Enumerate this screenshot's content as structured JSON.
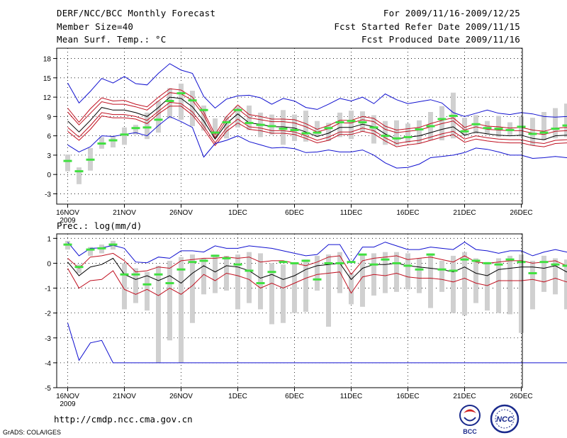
{
  "header": {
    "title": "DERF/NCC/BCC Monthly Forecast",
    "member_size": "Member Size=40",
    "variable": "Mean Surf. Temp.: °C",
    "period": "For 2009/11/16-2009/12/25",
    "started": "Fcst Started Refer Date 2009/11/15",
    "produced": "Fcst Produced Date 2009/11/16"
  },
  "prec_label": "Prec.: log(mm/d)",
  "footer": {
    "url": "http://cmdp.ncc.cma.gov.cn",
    "credit": "GrADS: COLA/IGES",
    "logo_bcc": "BCC",
    "logo_ncc": "NCC"
  },
  "colors": {
    "envelope": "#1010d0",
    "spread": "#c01020",
    "mean": "#000000",
    "observed": "#40e040",
    "box": "#d0d0d0"
  },
  "chart_data": [
    {
      "type": "line",
      "title": "Mean Surf. Temp.: °C",
      "ylim": [
        -4.6,
        19.6
      ],
      "yticks": [
        "18",
        "15",
        "12",
        "9",
        "6",
        "3",
        "0",
        "-3"
      ],
      "ytick_values": [
        18,
        15,
        12,
        9,
        6,
        3,
        0,
        -3
      ],
      "xticks": [
        "16NOV",
        "21NOV",
        "26NOV",
        "1DEC",
        "6DEC",
        "11DEC",
        "16DEC",
        "21DEC",
        "26DEC"
      ],
      "x_sublabel": "2009",
      "series": [
        {
          "name": "max",
          "values": [
            14.2,
            11.1,
            12.9,
            14.9,
            14.2,
            15.2,
            14.1,
            13.9,
            15.7,
            17.2,
            16.2,
            15.7,
            12.1,
            10.3,
            11.7,
            12.2,
            12.3,
            11.9,
            10.9,
            11.8,
            11.4,
            10.4,
            10.1,
            10.9,
            11.8,
            11.4,
            12.0,
            11.0,
            12.5,
            11.6,
            11.0,
            11.3,
            11.6,
            11.1,
            9.6,
            9.0,
            9.5,
            10.0,
            9.5,
            9.3,
            9.6,
            9.4,
            9.0,
            8.9,
            9.0,
            9.2,
            9.1,
            9.2
          ]
        },
        {
          "name": "p90",
          "values": [
            10.3,
            8.1,
            10.2,
            11.9,
            11.4,
            11.5,
            10.9,
            10.5,
            12.0,
            13.3,
            13.1,
            12.0,
            9.7,
            6.2,
            9.0,
            10.8,
            9.3,
            9.0,
            8.6,
            8.6,
            8.5,
            7.9,
            7.0,
            7.6,
            8.4,
            8.4,
            9.0,
            8.7,
            7.5,
            6.9,
            7.1,
            7.3,
            7.9,
            8.4,
            8.8,
            7.3,
            7.9,
            7.5,
            7.4,
            7.2,
            7.3,
            6.9,
            6.7,
            7.2,
            7.3,
            6.9,
            6.9,
            7.0
          ]
        },
        {
          "name": "p75",
          "values": [
            9.7,
            7.7,
            9.5,
            11.3,
            10.9,
            10.9,
            10.5,
            10.0,
            11.4,
            12.7,
            12.5,
            11.5,
            9.2,
            5.7,
            8.5,
            10.2,
            8.8,
            8.5,
            8.2,
            8.2,
            8.0,
            7.4,
            6.6,
            7.1,
            8.0,
            8.0,
            8.5,
            8.2,
            7.0,
            6.5,
            6.7,
            6.9,
            7.4,
            7.9,
            8.3,
            6.9,
            7.4,
            7.0,
            6.9,
            6.8,
            6.8,
            6.4,
            6.2,
            6.7,
            6.8,
            6.5,
            6.5,
            6.6
          ]
        },
        {
          "name": "mean",
          "values": [
            8.3,
            6.6,
            8.4,
            10.4,
            10.0,
            10.0,
            9.6,
            9.0,
            10.4,
            12.0,
            11.8,
            10.5,
            8.3,
            5.5,
            7.9,
            9.4,
            8.0,
            7.8,
            7.4,
            7.4,
            7.2,
            6.6,
            5.9,
            6.4,
            7.3,
            7.3,
            7.8,
            7.4,
            6.3,
            5.5,
            5.8,
            6.0,
            6.5,
            7.0,
            7.4,
            6.1,
            6.6,
            6.3,
            6.1,
            6.0,
            6.1,
            5.6,
            5.4,
            6.0,
            6.1,
            5.8,
            5.8,
            5.9
          ]
        },
        {
          "name": "p25",
          "values": [
            7.3,
            5.8,
            7.6,
            9.6,
            9.3,
            9.3,
            9.0,
            8.4,
            9.8,
            11.2,
            11.0,
            9.7,
            7.5,
            4.9,
            7.2,
            8.6,
            7.4,
            7.2,
            6.8,
            6.8,
            6.6,
            6.0,
            5.3,
            5.8,
            6.6,
            6.6,
            7.2,
            6.8,
            5.7,
            4.8,
            5.1,
            5.3,
            5.8,
            6.3,
            6.7,
            5.5,
            6.0,
            5.7,
            5.5,
            5.4,
            5.4,
            5.0,
            4.8,
            5.3,
            5.4,
            5.2,
            5.2,
            5.3
          ]
        },
        {
          "name": "p10",
          "values": [
            6.7,
            5.3,
            7.0,
            9.1,
            8.8,
            8.8,
            8.6,
            7.9,
            9.4,
            10.6,
            10.6,
            9.2,
            7.0,
            4.5,
            6.7,
            8.0,
            7.0,
            6.8,
            6.4,
            6.4,
            6.2,
            5.6,
            4.9,
            5.3,
            6.2,
            6.2,
            6.7,
            6.3,
            5.2,
            4.3,
            4.6,
            4.8,
            5.3,
            5.8,
            6.2,
            5.0,
            5.5,
            5.2,
            5.0,
            4.9,
            4.9,
            4.5,
            4.3,
            4.8,
            4.9,
            4.7,
            4.7,
            4.8
          ]
        },
        {
          "name": "min",
          "values": [
            4.6,
            3.5,
            4.3,
            6.0,
            5.9,
            6.2,
            6.5,
            6.0,
            7.6,
            9.0,
            8.2,
            7.3,
            2.7,
            4.8,
            5.3,
            6.0,
            5.1,
            4.6,
            4.1,
            4.2,
            4.0,
            3.4,
            3.5,
            3.8,
            3.5,
            3.5,
            3.8,
            3.0,
            1.8,
            1.0,
            1.1,
            1.6,
            2.6,
            2.8,
            3.0,
            3.4,
            4.1,
            3.9,
            3.5,
            3.0,
            3.0,
            2.5,
            2.6,
            2.8,
            2.6,
            2.5,
            2.8,
            3.1
          ]
        }
      ],
      "boxes": {
        "low": [
          0.5,
          -1.5,
          0.6,
          4.0,
          4.2,
          4.6,
          6.2,
          5.5,
          6.5,
          8.7,
          8.5,
          7.5,
          6.8,
          5.7,
          5.6,
          7.3,
          6.9,
          5.8,
          6.2,
          4.6,
          5.2,
          5.1,
          5.8,
          5.2,
          5.8,
          5.5,
          6.6,
          4.8,
          4.6,
          4.5,
          4.9,
          4.8,
          5.3,
          5.3,
          5.6,
          6.0,
          6.3,
          6.2,
          5.8,
          6.1,
          5.9,
          4.5,
          5.3,
          5.6,
          5.8,
          5.7,
          5.4,
          5.2
        ],
        "high": [
          3.1,
          1.1,
          4.1,
          5.8,
          6.0,
          7.3,
          7.7,
          9.6,
          11.4,
          13.4,
          14.1,
          13.0,
          10.7,
          8.7,
          9.0,
          10.6,
          10.7,
          9.6,
          9.3,
          10.0,
          9.3,
          9.9,
          8.3,
          8.0,
          9.6,
          9.9,
          9.8,
          9.2,
          8.3,
          8.4,
          7.9,
          8.4,
          9.7,
          10.6,
          12.7,
          8.8,
          9.2,
          8.3,
          9.1,
          8.1,
          9.0,
          8.8,
          9.7,
          10.3,
          11.0,
          10.2,
          10.5,
          10.6
        ]
      },
      "observed": [
        2.1,
        0.5,
        2.3,
        4.8,
        5.3,
        6.2,
        7.2,
        7.3,
        8.5,
        11.4,
        12.6,
        11.5,
        10.0,
        6.5,
        8.1,
        10.0,
        8.0,
        7.7,
        7.5,
        7.1,
        6.9,
        6.4,
        6.5,
        7.2,
        8.1,
        8.3,
        8.1,
        7.3,
        6.0,
        5.6,
        5.8,
        7.0,
        7.5,
        8.6,
        9.1,
        6.7,
        7.8,
        7.2,
        7.1,
        6.9,
        7.4,
        6.3,
        6.5,
        7.1,
        7.6,
        7.7,
        7.5,
        7.8
      ]
    },
    {
      "type": "line",
      "title": "Prec.: log(mm/d)",
      "ylim": [
        -5.0,
        1.18
      ],
      "yticks": [
        "1",
        "0",
        "-1",
        "-2",
        "-3",
        "-4",
        "-5"
      ],
      "ytick_values": [
        1,
        0,
        -1,
        -2,
        -3,
        -4,
        -5
      ],
      "xticks": [
        "16NOV",
        "21NOV",
        "26NOV",
        "1DEC",
        "6DEC",
        "11DEC",
        "16DEC",
        "21DEC",
        "26DEC"
      ],
      "x_sublabel": "2009",
      "series": [
        {
          "name": "max",
          "values": [
            0.85,
            0.3,
            0.6,
            0.62,
            0.72,
            0.6,
            0.05,
            0.02,
            0.25,
            0.2,
            0.5,
            0.5,
            0.45,
            0.7,
            0.6,
            0.6,
            0.7,
            0.65,
            0.6,
            0.5,
            0.4,
            0.3,
            0.35,
            0.75,
            0.75,
            0.0,
            0.65,
            0.65,
            0.85,
            0.7,
            0.55,
            0.55,
            0.65,
            0.6,
            0.55,
            0.85,
            0.55,
            0.5,
            0.4,
            0.5,
            0.5,
            0.3,
            0.45,
            0.55,
            0.45,
            0.35,
            0.35,
            0.3
          ]
        },
        {
          "name": "p90",
          "values": [
            0.2,
            -0.2,
            0.25,
            0.3,
            0.4,
            0.1,
            -0.35,
            -0.3,
            -0.15,
            -0.2,
            0.1,
            0.15,
            0.2,
            0.2,
            0.25,
            0.2,
            0.25,
            0.05,
            0.1,
            0.1,
            0.0,
            -0.1,
            0.05,
            0.25,
            0.3,
            -0.45,
            0.1,
            0.2,
            0.25,
            0.3,
            0.15,
            0.2,
            0.25,
            0.15,
            0.05,
            0.3,
            0.05,
            0.0,
            0.05,
            0.1,
            0.1,
            0.0,
            0.05,
            0.1,
            -0.1,
            -0.05,
            -0.1,
            -0.15
          ]
        },
        {
          "name": "mean",
          "values": [
            0.05,
            -0.5,
            -0.15,
            -0.05,
            0.2,
            -0.45,
            -0.65,
            -0.5,
            -0.7,
            -0.5,
            -0.8,
            -0.4,
            -0.1,
            -0.35,
            -0.1,
            -0.15,
            -0.3,
            -0.6,
            -0.45,
            -0.65,
            -0.5,
            -0.25,
            -0.1,
            -0.05,
            0.0,
            -0.65,
            -0.2,
            -0.05,
            -0.05,
            0.0,
            -0.1,
            -0.15,
            -0.2,
            -0.25,
            -0.35,
            -0.15,
            -0.4,
            -0.5,
            -0.25,
            -0.2,
            -0.15,
            -0.15,
            -0.2,
            -0.1,
            -0.35,
            -0.25,
            -0.2,
            -0.3
          ]
        },
        {
          "name": "p10",
          "values": [
            -0.2,
            -1.0,
            -0.7,
            -0.65,
            -0.3,
            -1.05,
            -1.25,
            -1.05,
            -1.3,
            -1.0,
            -1.25,
            -0.9,
            -0.45,
            -0.7,
            -0.4,
            -0.5,
            -0.65,
            -1.0,
            -0.8,
            -1.0,
            -0.8,
            -0.6,
            -0.45,
            -0.4,
            -0.35,
            -1.2,
            -0.55,
            -0.45,
            -0.5,
            -0.4,
            -0.55,
            -0.6,
            -0.6,
            -0.65,
            -0.75,
            -0.6,
            -0.8,
            -0.9,
            -0.7,
            -0.7,
            -0.7,
            -0.65,
            -0.75,
            -0.6,
            -0.75,
            -0.75,
            -0.75,
            -0.85
          ]
        },
        {
          "name": "min",
          "values": [
            -2.4,
            -3.9,
            -3.2,
            -3.1,
            -4.0,
            -4.0,
            -4.0,
            -4.0,
            -4.0,
            -4.0,
            -4.0,
            -4.0,
            -4.0,
            -4.0,
            -4.0,
            -4.0,
            -4.0,
            -4.0,
            -4.0,
            -4.0,
            -4.0,
            -4.0,
            -4.0,
            -4.0,
            -4.0,
            -4.0,
            -4.0,
            -4.0,
            -4.0,
            -4.0,
            -4.0,
            -4.0,
            -4.0,
            -4.0,
            -4.0,
            -4.0,
            -4.0,
            -4.0,
            -4.0,
            -4.0,
            -4.0,
            -4.0,
            -4.0,
            -4.0,
            -4.0,
            -4.0,
            -4.0,
            -4.0
          ]
        }
      ],
      "boxes": {
        "low": [
          0.55,
          -0.4,
          0.3,
          0.4,
          0.55,
          -1.85,
          -1.6,
          -1.9,
          -4.0,
          -3.1,
          -4.0,
          -2.4,
          -1.25,
          -1.2,
          -1.1,
          -1.85,
          -1.6,
          -1.85,
          -2.45,
          -2.4,
          -2.0,
          -1.95,
          -1.1,
          -2.55,
          -1.2,
          -1.65,
          -1.75,
          -1.3,
          -1.2,
          -1.15,
          -1.05,
          -1.2,
          -1.8,
          -1.15,
          -2.0,
          -2.1,
          -1.6,
          -1.9,
          -2.0,
          -2.05,
          -2.8,
          -1.85,
          -1.15,
          -1.25,
          -1.85,
          -1.15,
          -1.4,
          -1.6
        ],
        "high": [
          0.9,
          -0.05,
          0.65,
          0.75,
          0.9,
          0.0,
          -0.2,
          -0.35,
          -0.1,
          0.1,
          0.25,
          0.35,
          0.2,
          0.35,
          0.3,
          0.35,
          0.45,
          0.4,
          0.0,
          -0.05,
          0.0,
          0.15,
          0.3,
          0.35,
          0.45,
          -0.4,
          0.35,
          0.4,
          0.45,
          0.45,
          0.4,
          0.2,
          0.4,
          0.1,
          0.3,
          0.45,
          0.2,
          0.05,
          0.2,
          0.3,
          0.35,
          0.1,
          0.3,
          0.2,
          0.15,
          0.2,
          0.05,
          0.1
        ]
      },
      "observed": [
        0.75,
        -0.15,
        0.55,
        0.6,
        0.75,
        -0.45,
        -0.45,
        -0.85,
        -0.45,
        -0.8,
        -0.25,
        0.05,
        0.1,
        0.3,
        0.2,
        -0.05,
        -0.3,
        -0.8,
        -0.35,
        0.05,
        0.0,
        0.1,
        -0.65,
        0.0,
        0.0,
        0.05,
        0.35,
        -0.05,
        0.15,
        0.0,
        -0.1,
        -0.25,
        0.35,
        -0.25,
        -0.3,
        0.15,
        0.1,
        0.0,
        -0.05,
        0.15,
        0.05,
        -0.4,
        0.05,
        -0.05,
        -0.1,
        0.05,
        -0.05,
        -0.1
      ]
    }
  ]
}
